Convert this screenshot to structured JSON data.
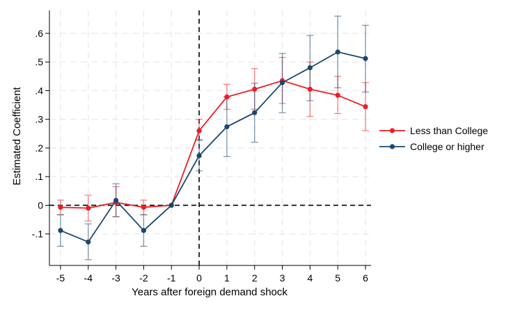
{
  "chart_data": {
    "type": "line",
    "title": "",
    "xlabel": "Years after foreign demand shock",
    "ylabel": "Estimated Coefficient",
    "xlim": [
      -5.4,
      6.2
    ],
    "ylim": [
      -0.21,
      0.68
    ],
    "x_ticks": [
      -5,
      -4,
      -3,
      -2,
      -1,
      0,
      1,
      2,
      3,
      4,
      5,
      6
    ],
    "x_tick_labels": [
      "-5",
      "-4",
      "-3",
      "-2",
      "-1",
      "0",
      "1",
      "2",
      "3",
      "4",
      "5",
      "6"
    ],
    "y_ticks": [
      -0.1,
      0,
      0.1,
      0.2,
      0.3,
      0.4,
      0.5,
      0.6
    ],
    "y_tick_labels": [
      "-.1",
      "0",
      ".1",
      ".2",
      ".3",
      ".4",
      ".5",
      ".6"
    ],
    "grid": true,
    "reference_lines": {
      "vertical_x": 0,
      "horizontal_y": 0
    },
    "legend_position": "right",
    "series": [
      {
        "name": "Less than College",
        "color": "#f01c24",
        "x": [
          -5,
          -4,
          -3,
          -2,
          -1,
          0,
          1,
          2,
          3,
          4,
          5,
          6
        ],
        "values": [
          -0.007,
          -0.01,
          0.01,
          -0.007,
          0.0,
          0.26,
          0.378,
          0.405,
          0.435,
          0.405,
          0.384,
          0.344
        ],
        "ci_low": [
          -0.033,
          -0.055,
          -0.04,
          -0.033,
          0.0,
          0.23,
          0.335,
          0.335,
          0.355,
          0.31,
          0.32,
          0.26
        ],
        "ci_high": [
          0.018,
          0.035,
          0.065,
          0.018,
          0.0,
          0.3,
          0.422,
          0.477,
          0.516,
          0.5,
          0.45,
          0.428
        ]
      },
      {
        "name": "College or higher",
        "color": "#1a476f",
        "x": [
          -5,
          -4,
          -3,
          -2,
          -1,
          0,
          1,
          2,
          3,
          4,
          5,
          6
        ],
        "values": [
          -0.088,
          -0.128,
          0.017,
          -0.088,
          0.0,
          0.173,
          0.274,
          0.323,
          0.428,
          0.48,
          0.535,
          0.512
        ],
        "ci_low": [
          -0.143,
          -0.19,
          -0.04,
          -0.143,
          0.0,
          0.12,
          0.17,
          0.22,
          0.323,
          0.365,
          0.41,
          0.395
        ],
        "ci_high": [
          -0.033,
          -0.065,
          0.075,
          -0.033,
          0.0,
          0.226,
          0.378,
          0.426,
          0.53,
          0.593,
          0.66,
          0.628
        ]
      }
    ]
  }
}
